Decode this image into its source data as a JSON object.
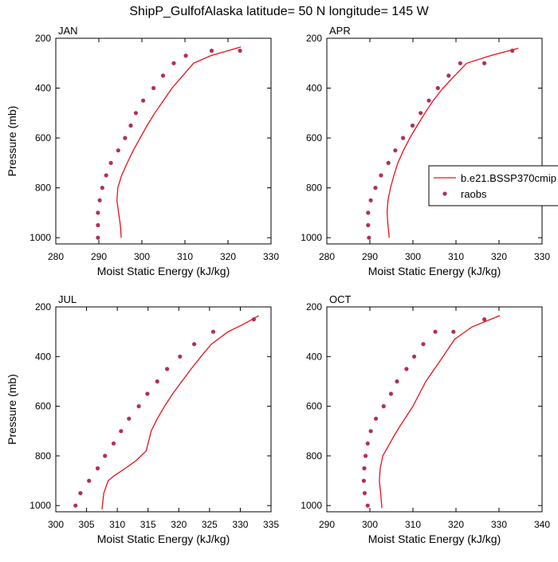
{
  "title": "ShipP_GulfofAlaska  latitude= 50 N longitude= 145 W",
  "colors": {
    "model": "#e8101a",
    "obs": "#b0305a"
  },
  "legend": {
    "model_label": "b.e21.BSSP370cmip",
    "obs_label": "raobs"
  },
  "chart_data": [
    {
      "type": "scatter",
      "panel_label": "JAN",
      "xlabel": "Moist Static Energy (kJ/kg)",
      "ylabel": "Pressure (mb)",
      "xlim": [
        280,
        330
      ],
      "ylim": [
        200,
        1025
      ],
      "y_reversed": true,
      "xticks": [
        280,
        290,
        300,
        310,
        320,
        330
      ],
      "xtick_labels": [
        "280",
        "290",
        "300",
        "310",
        "320",
        "330"
      ],
      "yticks": [
        200,
        400,
        600,
        800,
        1000
      ],
      "ytick_labels": [
        "200",
        "400",
        "600",
        "800",
        "1000"
      ],
      "series": [
        {
          "name": "b.e21.BSSP370cmip",
          "kind": "line",
          "x": [
            295.2,
            295.0,
            294.6,
            294.2,
            294.4,
            295.3,
            296.6,
            298.0,
            299.6,
            301.2,
            303.0,
            305.0,
            307.0,
            309.5,
            312.0,
            316.0,
            323.0
          ],
          "y": [
            1000,
            950,
            900,
            850,
            800,
            750,
            700,
            650,
            600,
            550,
            500,
            450,
            400,
            350,
            300,
            270,
            235
          ]
        },
        {
          "name": "raobs",
          "kind": "points",
          "x": [
            289.8,
            289.8,
            289.8,
            290.2,
            290.8,
            291.7,
            292.8,
            294.5,
            296.1,
            297.4,
            298.6,
            300.3,
            302.7,
            304.9,
            307.4,
            310.2,
            316.2,
            322.8
          ],
          "y": [
            1000,
            950,
            900,
            850,
            800,
            750,
            700,
            650,
            600,
            550,
            500,
            450,
            400,
            350,
            300,
            270,
            250,
            250
          ]
        }
      ]
    },
    {
      "type": "scatter",
      "panel_label": "APR",
      "xlabel": "Moist Static Energy (kJ/kg)",
      "ylabel": "",
      "xlim": [
        280,
        330
      ],
      "ylim": [
        200,
        1025
      ],
      "y_reversed": true,
      "xticks": [
        280,
        290,
        300,
        310,
        320,
        330
      ],
      "xtick_labels": [
        "280",
        "290",
        "300",
        "310",
        "320",
        "330"
      ],
      "yticks": [
        200,
        400,
        600,
        800,
        1000
      ],
      "ytick_labels": [
        "200",
        "400",
        "600",
        "800",
        "1000"
      ],
      "series": [
        {
          "name": "b.e21.BSSP370cmip",
          "kind": "line",
          "x": [
            294.5,
            294.2,
            294.0,
            294.2,
            294.8,
            295.6,
            296.5,
            297.8,
            299.3,
            301.0,
            302.8,
            304.7,
            307.0,
            309.7,
            312.5,
            318.0,
            324.5
          ],
          "y": [
            1000,
            950,
            900,
            850,
            800,
            750,
            700,
            650,
            600,
            550,
            500,
            450,
            400,
            350,
            300,
            270,
            240
          ]
        },
        {
          "name": "raobs",
          "kind": "points",
          "x": [
            289.8,
            289.6,
            289.6,
            290.2,
            291.3,
            292.6,
            294.3,
            295.9,
            297.7,
            299.9,
            301.8,
            303.7,
            305.8,
            308.3,
            311.0,
            316.6,
            323.1
          ],
          "y": [
            1000,
            950,
            900,
            850,
            800,
            750,
            700,
            650,
            600,
            550,
            500,
            450,
            400,
            350,
            300,
            300,
            250
          ]
        }
      ]
    },
    {
      "type": "scatter",
      "panel_label": "JUL",
      "xlabel": "Moist Static Energy (kJ/kg)",
      "ylabel": "Pressure (mb)",
      "xlim": [
        300,
        335
      ],
      "ylim": [
        200,
        1025
      ],
      "y_reversed": true,
      "xticks": [
        300,
        305,
        310,
        315,
        320,
        325,
        330,
        335
      ],
      "xtick_labels": [
        "300",
        "305",
        "310",
        "315",
        "320",
        "325",
        "330",
        "335"
      ],
      "yticks": [
        200,
        400,
        600,
        800,
        1000
      ],
      "ytick_labels": [
        "200",
        "400",
        "600",
        "800",
        "1000"
      ],
      "series": [
        {
          "name": "b.e21.BSSP370cmip",
          "kind": "line",
          "x": [
            307.5,
            307.8,
            308.5,
            309.5,
            311.3,
            313.0,
            314.7,
            315.5,
            316.5,
            317.7,
            319.0,
            320.5,
            322.0,
            323.6,
            325.3,
            328.0,
            330.5,
            333.0
          ],
          "y": [
            1015,
            950,
            900,
            880,
            850,
            820,
            780,
            700,
            650,
            600,
            550,
            500,
            450,
            400,
            350,
            300,
            270,
            235
          ]
        },
        {
          "name": "raobs",
          "kind": "points",
          "x": [
            303.2,
            304.0,
            305.4,
            306.8,
            308.0,
            309.4,
            310.6,
            311.9,
            313.5,
            314.9,
            316.5,
            318.1,
            320.2,
            322.5,
            325.6,
            332.2
          ],
          "y": [
            1000,
            950,
            900,
            850,
            800,
            750,
            700,
            650,
            600,
            550,
            500,
            450,
            400,
            350,
            300,
            250
          ]
        }
      ]
    },
    {
      "type": "scatter",
      "panel_label": "OCT",
      "xlabel": "Moist Static Energy (kJ/kg)",
      "ylabel": "",
      "xlim": [
        290,
        340
      ],
      "ylim": [
        200,
        1025
      ],
      "y_reversed": true,
      "xticks": [
        290,
        300,
        310,
        320,
        330,
        340
      ],
      "xtick_labels": [
        "290",
        "300",
        "310",
        "320",
        "330",
        "340"
      ],
      "yticks": [
        200,
        400,
        600,
        800,
        1000
      ],
      "ytick_labels": [
        "200",
        "400",
        "600",
        "800",
        "1000"
      ],
      "series": [
        {
          "name": "b.e21.BSSP370cmip",
          "kind": "line",
          "x": [
            302.8,
            302.5,
            302.2,
            302.4,
            303.0,
            304.3,
            305.6,
            307.0,
            308.5,
            310.0,
            311.5,
            313.0,
            315.0,
            317.0,
            319.7,
            323.8,
            330.2
          ],
          "y": [
            1010,
            950,
            900,
            850,
            800,
            760,
            720,
            680,
            640,
            600,
            550,
            500,
            450,
            400,
            330,
            280,
            235
          ]
        },
        {
          "name": "raobs",
          "kind": "points",
          "x": [
            299.5,
            298.8,
            298.6,
            298.7,
            299.0,
            299.5,
            300.2,
            301.4,
            303.2,
            304.9,
            306.3,
            308.5,
            310.3,
            312.4,
            315.2,
            319.4,
            326.6
          ],
          "y": [
            1000,
            950,
            900,
            850,
            800,
            750,
            700,
            650,
            600,
            550,
            500,
            450,
            400,
            350,
            300,
            300,
            250
          ]
        }
      ]
    }
  ]
}
